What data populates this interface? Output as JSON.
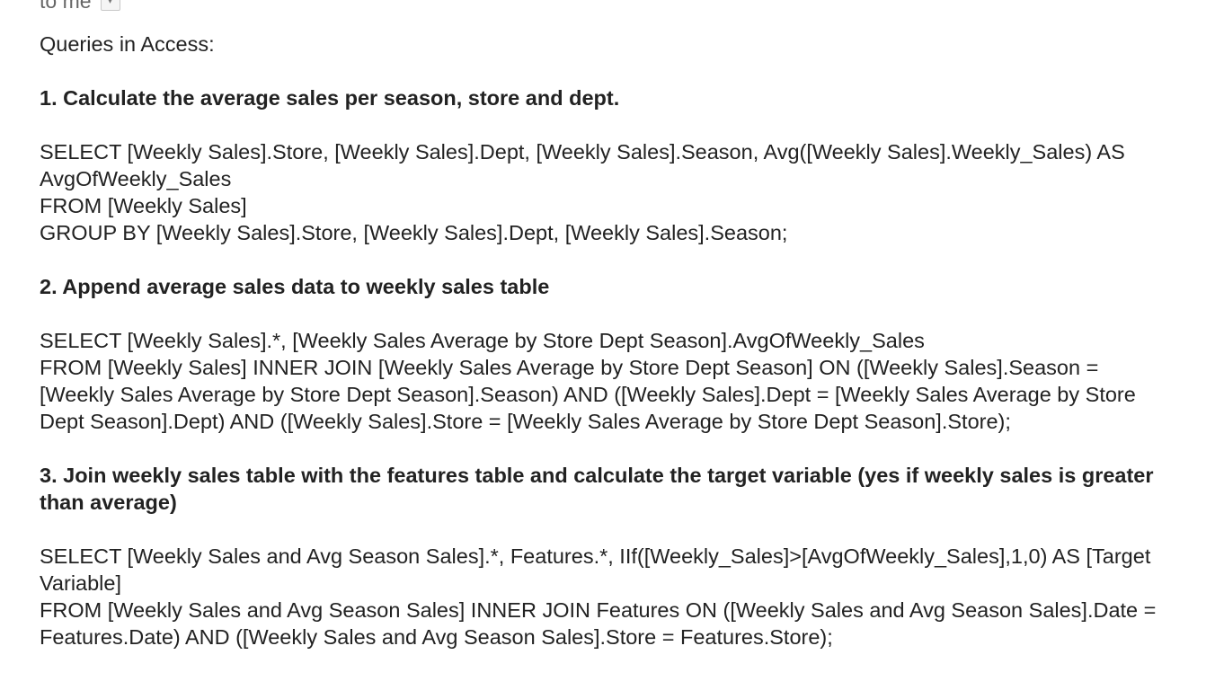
{
  "header": {
    "recipient_label": "to me",
    "dropdown_icon": "chevron-down-icon"
  },
  "body": {
    "intro": "Queries in Access:",
    "sections": [
      {
        "heading": "1. Calculate the average sales per season, store and dept.",
        "sql_lines": [
          "SELECT [Weekly Sales].Store, [Weekly Sales].Dept, [Weekly Sales].Season, Avg([Weekly Sales].Weekly_Sales) AS AvgOfWeekly_Sales",
          "FROM [Weekly Sales]",
          "GROUP BY [Weekly Sales].Store, [Weekly Sales].Dept, [Weekly Sales].Season;"
        ]
      },
      {
        "heading": "2. Append average sales data to weekly sales table",
        "sql_lines": [
          "SELECT [Weekly Sales].*, [Weekly Sales Average by Store Dept Season].AvgOfWeekly_Sales",
          "FROM [Weekly Sales] INNER JOIN [Weekly Sales Average by Store Dept Season] ON ([Weekly Sales].Season = [Weekly Sales Average by Store Dept Season].Season) AND ([Weekly Sales].Dept = [Weekly Sales Average by Store Dept Season].Dept) AND ([Weekly Sales].Store = [Weekly Sales Average by Store Dept Season].Store);"
        ]
      },
      {
        "heading": "3. Join weekly sales table with the features table and calculate the target variable (yes if weekly sales is greater than average)",
        "sql_lines": [
          "SELECT [Weekly Sales and Avg Season Sales].*, Features.*, IIf([Weekly_Sales]>[AvgOfWeekly_Sales],1,0) AS [Target Variable]",
          "FROM [Weekly Sales and Avg Season Sales] INNER JOIN Features ON ([Weekly Sales and Avg Season Sales].Date = Features.Date) AND ([Weekly Sales and Avg Season Sales].Store = Features.Store);"
        ]
      }
    ]
  }
}
